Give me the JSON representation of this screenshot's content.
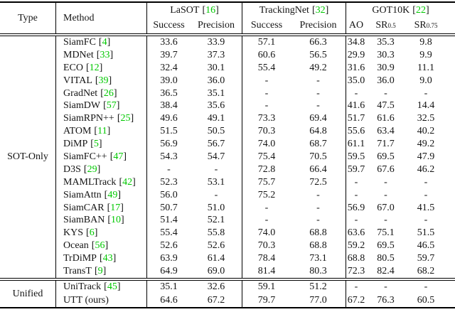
{
  "colors": {
    "cite": "#00C800",
    "text": "#141414",
    "line": "#000000"
  },
  "cite_brackets": {
    "open": "[",
    "close": "]"
  },
  "header": {
    "type_label": "Type",
    "method_label": "Method",
    "groups": [
      {
        "title": "LaSOT",
        "cite": "16",
        "subs": [
          {
            "t": "Success"
          },
          {
            "t": "Precision"
          }
        ]
      },
      {
        "title": "TrackingNet",
        "cite": "32",
        "subs": [
          {
            "t": "Success"
          },
          {
            "t": "Precision"
          }
        ]
      },
      {
        "title": "GOT10K",
        "cite": "22",
        "subs": [
          {
            "t": "AO"
          },
          {
            "t": "SR",
            "sub": "0.5"
          },
          {
            "t": "SR",
            "sub": "0.75"
          }
        ]
      }
    ]
  },
  "sections": [
    {
      "type": "SOT-Only",
      "rows": [
        {
          "method": "SiamFC",
          "cite": "4",
          "values": [
            "33.6",
            "33.9",
            "57.1",
            "66.3",
            "34.8",
            "35.3",
            "9.8"
          ]
        },
        {
          "method": "MDNet",
          "cite": "33",
          "values": [
            "39.7",
            "37.3",
            "60.6",
            "56.5",
            "29.9",
            "30.3",
            "9.9"
          ]
        },
        {
          "method": "ECO",
          "cite": "12",
          "values": [
            "32.4",
            "30.1",
            "55.4",
            "49.2",
            "31.6",
            "30.9",
            "11.1"
          ]
        },
        {
          "method": "VITAL",
          "cite": "39",
          "values": [
            "39.0",
            "36.0",
            "-",
            "-",
            "35.0",
            "36.0",
            "9.0"
          ]
        },
        {
          "method": "GradNet",
          "cite": "26",
          "values": [
            "36.5",
            "35.1",
            "-",
            "-",
            "-",
            "-",
            "-"
          ]
        },
        {
          "method": "SiamDW",
          "cite": "57",
          "values": [
            "38.4",
            "35.6",
            "-",
            "-",
            "41.6",
            "47.5",
            "14.4"
          ]
        },
        {
          "method": "SiamRPN++",
          "cite": "25",
          "values": [
            "49.6",
            "49.1",
            "73.3",
            "69.4",
            "51.7",
            "61.6",
            "32.5"
          ]
        },
        {
          "method": "ATOM",
          "cite": "11",
          "values": [
            "51.5",
            "50.5",
            "70.3",
            "64.8",
            "55.6",
            "63.4",
            "40.2"
          ]
        },
        {
          "method": "DiMP",
          "cite": "5",
          "values": [
            "56.9",
            "56.7",
            "74.0",
            "68.7",
            "61.1",
            "71.7",
            "49.2"
          ]
        },
        {
          "method": "SiamFC++",
          "cite": "47",
          "values": [
            "54.3",
            "54.7",
            "75.4",
            "70.5",
            "59.5",
            "69.5",
            "47.9"
          ]
        },
        {
          "method": "D3S",
          "cite": "29",
          "values": [
            "-",
            "-",
            "72.8",
            "66.4",
            "59.7",
            "67.6",
            "46.2"
          ]
        },
        {
          "method": "MAMLTrack",
          "cite": "42",
          "values": [
            "52.3",
            "53.1",
            "75.7",
            "72.5",
            "-",
            "-",
            "-"
          ]
        },
        {
          "method": "SiamAttn",
          "cite": "49",
          "values": [
            "56.0",
            "-",
            "75.2",
            "-",
            "-",
            "-",
            "-"
          ]
        },
        {
          "method": "SiamCAR",
          "cite": "17",
          "values": [
            "50.7",
            "51.0",
            "-",
            "-",
            "56.9",
            "67.0",
            "41.5"
          ]
        },
        {
          "method": "SiamBAN",
          "cite": "10",
          "values": [
            "51.4",
            "52.1",
            "-",
            "-",
            "-",
            "-",
            "-"
          ]
        },
        {
          "method": "KYS",
          "cite": "6",
          "values": [
            "55.4",
            "55.8",
            "74.0",
            "68.8",
            "63.6",
            "75.1",
            "51.5"
          ]
        },
        {
          "method": "Ocean",
          "cite": "56",
          "values": [
            "52.6",
            "52.6",
            "70.3",
            "68.8",
            "59.2",
            "69.5",
            "46.5"
          ]
        },
        {
          "method": "TrDiMP",
          "cite": "43",
          "values": [
            "63.9",
            "61.4",
            "78.4",
            "73.1",
            "68.8",
            "80.5",
            "59.7"
          ]
        },
        {
          "method": "TransT",
          "cite": "9",
          "values": [
            "64.9",
            "69.0",
            "81.4",
            "80.3",
            "72.3",
            "82.4",
            "68.2"
          ]
        }
      ]
    },
    {
      "type": "Unified",
      "rows": [
        {
          "method": "UniTrack",
          "cite": "45",
          "values": [
            "35.1",
            "32.6",
            "59.1",
            "51.2",
            "-",
            "-",
            "-"
          ]
        },
        {
          "method": "UTT (ours)",
          "cite": null,
          "values": [
            "64.6",
            "67.2",
            "79.7",
            "77.0",
            "67.2",
            "76.3",
            "60.5"
          ]
        }
      ]
    }
  ]
}
